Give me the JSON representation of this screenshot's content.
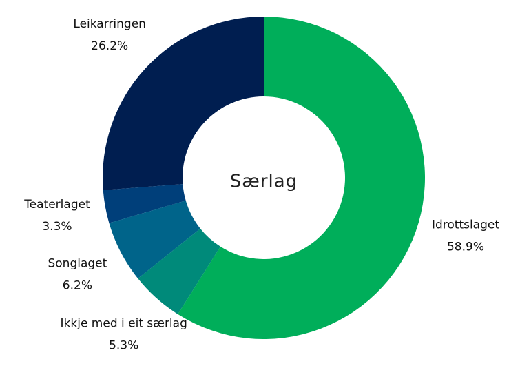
{
  "chart_data": {
    "type": "donut",
    "center_label": "Særlag",
    "categories": [
      "Idrottslaget",
      "Ikkje med i eit særlag",
      "Songlaget",
      "Teaterlaget",
      "Leikarringen"
    ],
    "values": [
      58.9,
      5.3,
      6.2,
      3.3,
      26.2
    ],
    "value_labels": [
      "58.9%",
      "5.3%",
      "6.2%",
      "3.3%",
      "26.2%"
    ],
    "colors": [
      "#00ae5a",
      "#008a7a",
      "#00648a",
      "#003f7a",
      "#001e50"
    ]
  }
}
